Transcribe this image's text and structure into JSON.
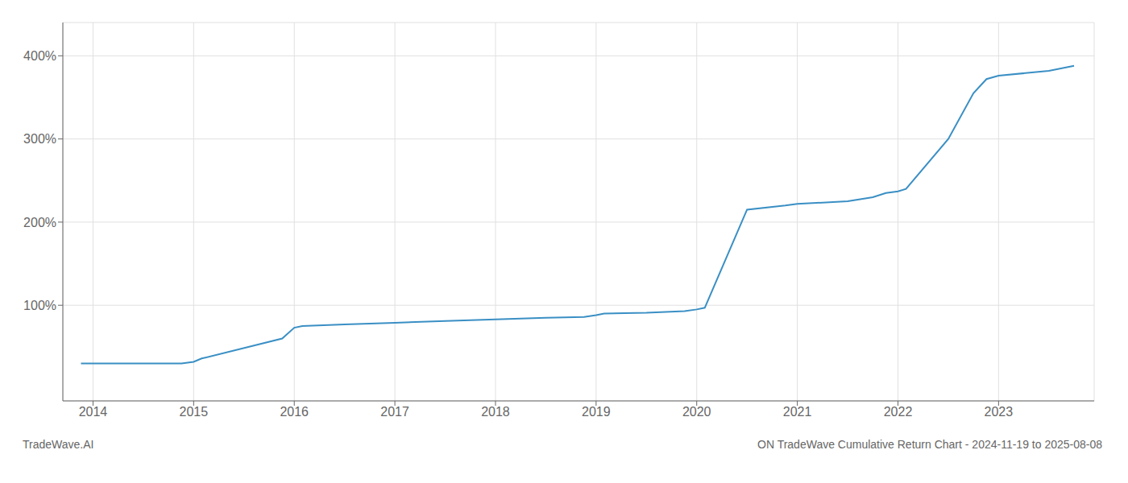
{
  "chart_data": {
    "type": "line",
    "title": "ON TradeWave Cumulative Return Chart - 2024-11-19 to 2025-08-08",
    "annotations": [
      "TradeWave.AI"
    ],
    "x": [
      2013.88,
      2014.0,
      2014.88,
      2015.0,
      2015.08,
      2015.88,
      2016.0,
      2016.08,
      2016.5,
      2017.0,
      2017.5,
      2018.0,
      2018.5,
      2018.88,
      2019.0,
      2019.08,
      2019.5,
      2019.88,
      2020.0,
      2020.08,
      2020.5,
      2020.88,
      2021.0,
      2021.5,
      2021.75,
      2021.88,
      2022.0,
      2022.08,
      2022.5,
      2022.75,
      2022.88,
      2023.0,
      2023.5,
      2023.75
    ],
    "values": [
      30,
      30,
      30,
      32,
      36,
      60,
      73,
      75,
      77,
      79,
      81,
      83,
      85,
      86,
      88,
      90,
      91,
      93,
      95,
      97,
      215,
      220,
      222,
      225,
      230,
      235,
      237,
      240,
      300,
      355,
      372,
      376,
      382,
      388
    ],
    "color": "#3a8fc4",
    "xlim": [
      2013.7,
      2023.95
    ],
    "ylim": [
      -15,
      440
    ],
    "xticks": [
      2014,
      2015,
      2016,
      2017,
      2018,
      2019,
      2020,
      2021,
      2022,
      2023
    ],
    "yticks": [
      {
        "value": 100,
        "label": "100%"
      },
      {
        "value": 200,
        "label": "200%"
      },
      {
        "value": 300,
        "label": "300%"
      },
      {
        "value": 400,
        "label": "400%"
      }
    ],
    "grid": true
  }
}
